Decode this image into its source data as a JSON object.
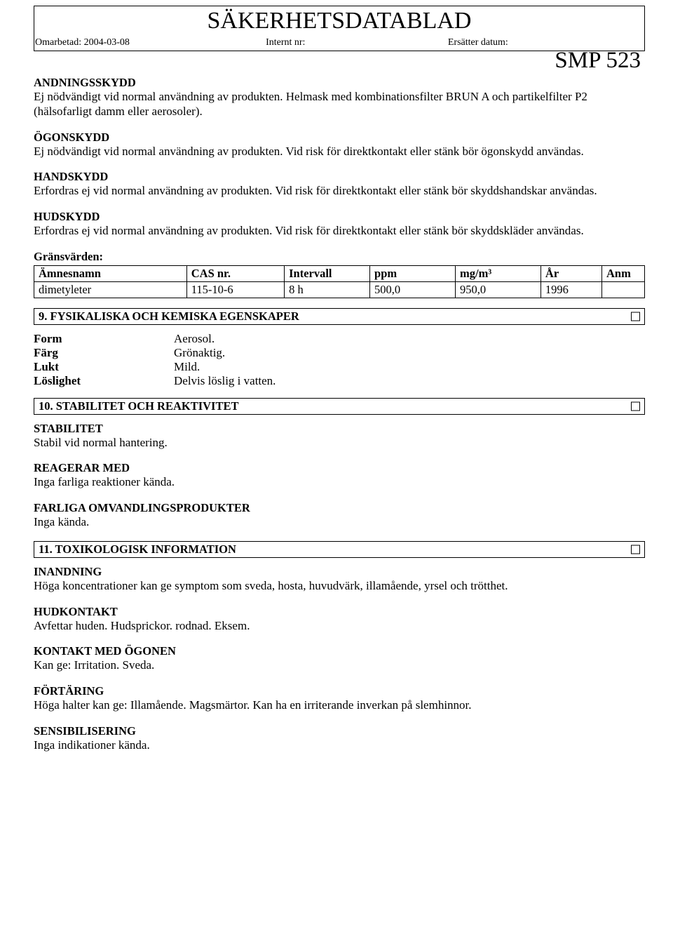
{
  "header": {
    "main_title": "SÄKERHETSDATABLAD",
    "revised_label": "Omarbetad:",
    "revised_value": "2004-03-08",
    "internal_label": "Internt nr:",
    "internal_value": "",
    "replaces_label": "Ersätter datum:",
    "replaces_value": "",
    "product_name": "SMP 523"
  },
  "s_breath": {
    "heading": "ANDNINGSSKYDD",
    "text": "Ej nödvändigt vid normal användning av produkten. Helmask med kombinationsfilter BRUN A och partikelfilter P2 (hälsofarligt damm eller aerosoler)."
  },
  "s_eye": {
    "heading": "ÖGONSKYDD",
    "text": "Ej nödvändigt vid normal användning av produkten. Vid risk för direktkontakt eller stänk bör ögonskydd användas."
  },
  "s_hand": {
    "heading": "HANDSKYDD",
    "text": "Erfordras ej vid normal användning av produkten. Vid risk för direktkontakt eller stänk bör skyddshandskar användas."
  },
  "s_skin": {
    "heading": "HUDSKYDD",
    "text": "Erfordras ej vid normal användning av produkten. Vid risk för direktkontakt eller stänk bör skyddskläder användas."
  },
  "limits": {
    "label": "Gränsvärden:",
    "columns": [
      "Ämnesnamn",
      "CAS nr.",
      "Intervall",
      "ppm",
      "mg/m³",
      "År",
      "Anm"
    ],
    "rows": [
      [
        "dimetyleter",
        "115-10-6",
        "8 h",
        "500,0",
        "950,0",
        "1996",
        ""
      ]
    ]
  },
  "sec9": {
    "title": "9. FYSIKALISKA OCH KEMISKA EGENSKAPER",
    "props": [
      {
        "k": "Form",
        "v": "Aerosol."
      },
      {
        "k": "Färg",
        "v": "Grönaktig."
      },
      {
        "k": "Lukt",
        "v": "Mild."
      },
      {
        "k": "Löslighet",
        "v": "Delvis löslig i vatten."
      }
    ]
  },
  "sec10": {
    "title": "10. STABILITET OCH REAKTIVITET",
    "blocks": [
      {
        "h": "STABILITET",
        "t": "Stabil vid normal hantering."
      },
      {
        "h": "REAGERAR MED",
        "t": "Inga farliga reaktioner kända."
      },
      {
        "h": "FARLIGA OMVANDLINGSPRODUKTER",
        "t": "Inga kända."
      }
    ]
  },
  "sec11": {
    "title": "11. TOXIKOLOGISK INFORMATION",
    "blocks": [
      {
        "h": "INANDNING",
        "t": "Höga koncentrationer kan ge symptom som sveda, hosta, huvudvärk, illamående, yrsel och trötthet."
      },
      {
        "h": "HUDKONTAKT",
        "t": "Avfettar huden. Hudsprickor. rodnad. Eksem."
      },
      {
        "h": "KONTAKT MED ÖGONEN",
        "t": "Kan ge: Irritation. Sveda."
      },
      {
        "h": "FÖRTÄRING",
        "t": "Höga halter kan ge: Illamående. Magsmärtor. Kan ha en irriterande inverkan på slemhinnor."
      },
      {
        "h": "SENSIBILISERING",
        "t": "Inga indikationer kända."
      }
    ]
  }
}
